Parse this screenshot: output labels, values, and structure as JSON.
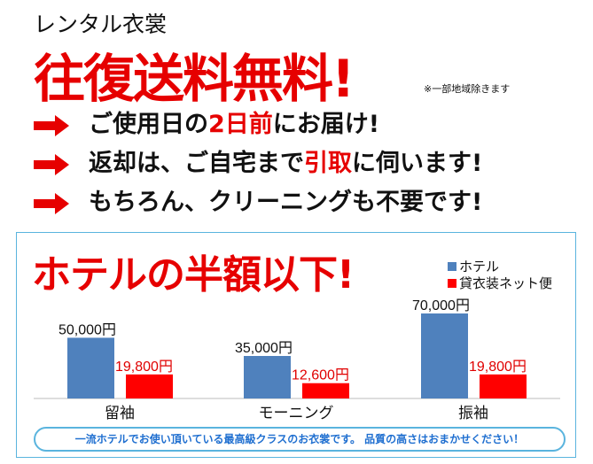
{
  "header": {
    "subtitle": "レンタル衣裳",
    "headline": "往復送料無料!",
    "note": "※一部地域除きます"
  },
  "features": [
    {
      "icon": "arrow-right-icon",
      "parts": [
        {
          "text": "ご使用日の",
          "red": false
        },
        {
          "text": "2日前",
          "red": true
        },
        {
          "text": "にお届け!",
          "red": false
        }
      ]
    },
    {
      "icon": "arrow-right-icon",
      "parts": [
        {
          "text": "返却は、ご自宅まで",
          "red": false
        },
        {
          "text": "引取",
          "red": true
        },
        {
          "text": "に伺います!",
          "red": false
        }
      ]
    },
    {
      "icon": "arrow-right-icon",
      "parts": [
        {
          "text": "もちろん、クリーニングも不要です!",
          "red": false
        }
      ]
    }
  ],
  "colors": {
    "accent": "#e60000",
    "hotel": "#4f81bd",
    "rental": "#ff0000",
    "border": "#5ab4de",
    "banner_text": "#1f6fd0"
  },
  "chart_data": {
    "type": "bar",
    "title": "ホテルの半額以下!",
    "categories": [
      "留袖",
      "モーニング",
      "振袖"
    ],
    "series": [
      {
        "name": "ホテル",
        "values": [
          50000,
          35000,
          70000
        ],
        "labels": [
          "50,000円",
          "35,000円",
          "70,000円"
        ]
      },
      {
        "name": "貸衣装ネット便",
        "values": [
          19800,
          12600,
          19800
        ],
        "labels": [
          "19,800円",
          "12,600円",
          "19,800円"
        ]
      }
    ],
    "ylim": [
      0,
      70000
    ],
    "grid": false,
    "legend": "top-right"
  },
  "banner": "一流ホテルでお使い頂いている最高級クラスのお衣裳です。 品質の高さはおまかせください！"
}
